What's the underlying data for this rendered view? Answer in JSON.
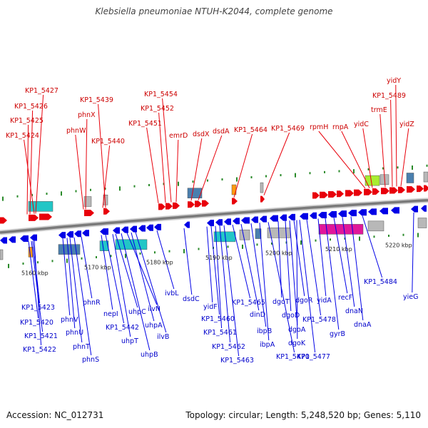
{
  "title": "Klebsiella pneumoniae NTUH-K2044, complete genome",
  "accession": "Accession: NC_012731",
  "topology": "Topology: circular; Length: 5,248,520 bp; Genes: 5,110",
  "colors": {
    "forward": "#e8000b",
    "reverse": "#0000e6",
    "forward_label": "#cc0000",
    "reverse_label": "#0000cc",
    "tick": "#2a8a2a",
    "backbone": "#7a7a7a",
    "feature_cyan": "#22c6c6",
    "feature_magenta": "#e0189a",
    "feature_lime": "#a8ee30",
    "feature_steel": "#4a7fae",
    "feature_orange": "#ff9a10",
    "feature_gray": "#b8b8b8"
  },
  "scale_labels": [
    "5160 kbp",
    "5170 kbp",
    "5180 kbp",
    "5190 kbp",
    "5200 kbp",
    "5210 kbp",
    "5220 kbp"
  ],
  "forward_genes": [
    "KP1_5427",
    "KP1_5426",
    "KP1_5425",
    "KP1_5424",
    "phnX",
    "phnW",
    "KP1_5439",
    "KP1_5440",
    "KP1_5454",
    "KP1_5452",
    "KP1_5451",
    "emrD",
    "dsdX",
    "dsdA",
    "KP1_5464",
    "KP1_5469",
    "rpmH",
    "rnpA",
    "yidC",
    "trmE",
    "yidY",
    "KP1_5489",
    "yidZ"
  ],
  "reverse_genes": [
    "KP1_5423",
    "KP1_5420",
    "KP1_5421",
    "KP1_5422",
    "phnV",
    "phnU",
    "phnT",
    "phnS",
    "phnR",
    "nepI",
    "KP1_5442",
    "uhpT",
    "uhpC",
    "uhpB",
    "ilvN",
    "uhpA",
    "ilvB",
    "ivbL",
    "dsdC",
    "yidF",
    "KP1_5460",
    "KP1_5461",
    "KP1_5462",
    "KP1_5463",
    "KP1_5465",
    "dinD",
    "ibpB",
    "ibpA",
    "KP1_5470",
    "dgoT",
    "dgoD",
    "dgoA",
    "dgoR",
    "dgoK",
    "KP1_5477",
    "yidA",
    "KP1_5478",
    "gyrB",
    "recF",
    "dnaN",
    "dnaA",
    "KP1_5484",
    "yieG"
  ]
}
